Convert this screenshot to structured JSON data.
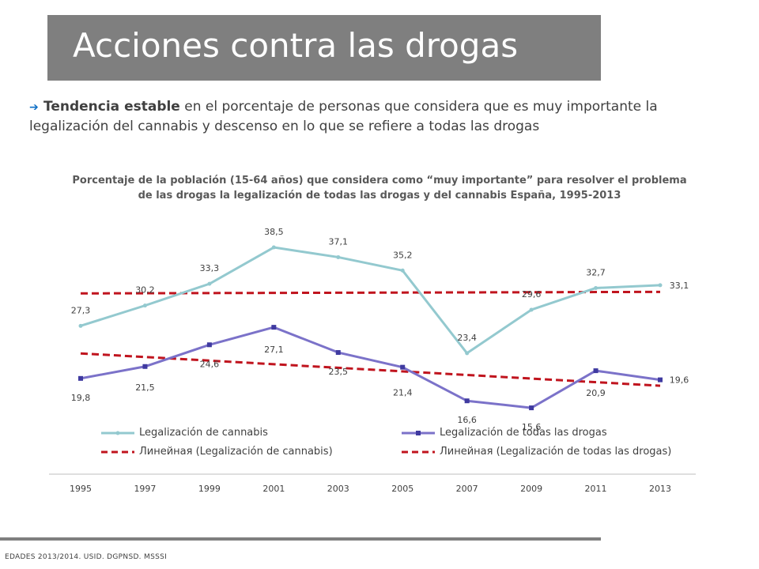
{
  "header": {
    "title": "Acciones contra las drogas"
  },
  "bullet": {
    "bold": "Tendencia estable",
    "rest": " en el porcentaje de personas que considera que es muy importante la legalización del cannabis y descenso en lo que se refiere a todas las drogas"
  },
  "footer": {
    "source": "EDADES 2013/2014. USID. DGPNSD. MSSSI"
  },
  "colors": {
    "title_bar": "#7f7f7f",
    "cannabis": "#93c9cf",
    "todas": "#7b72c9",
    "trend": "#c0141e",
    "arrow": "#0f6fc6"
  },
  "chart_data": {
    "type": "line",
    "title": "Porcentaje de la población (15-64 años) que considera como “muy importante” para resolver el problema de las drogas la legalización de todas las drogas  y del cannabis España, 1995-2013",
    "categories": [
      "1995",
      "1997",
      "1999",
      "2001",
      "2003",
      "2005",
      "2007",
      "2009",
      "2011",
      "2013"
    ],
    "series": [
      {
        "name": "Legalización de cannabis",
        "values": [
          27.3,
          30.2,
          33.3,
          38.5,
          37.1,
          35.2,
          23.4,
          29.6,
          32.7,
          33.1
        ],
        "labels": [
          "27,3",
          "30,2",
          "33,3",
          "38,5",
          "37,1",
          "35,2",
          "23,4",
          "29,6",
          "32,7",
          "33,1"
        ]
      },
      {
        "name": "Legalización de todas las drogas",
        "values": [
          19.8,
          21.5,
          24.6,
          27.1,
          23.5,
          21.4,
          16.6,
          15.6,
          20.9,
          19.6
        ],
        "labels": [
          "19,8",
          "21,5",
          "24,6",
          "27,1",
          "23,5",
          "21,4",
          "16,6",
          "15,6",
          "20,9",
          "19,6"
        ]
      }
    ],
    "trendlines": [
      {
        "name": "Линейная (Legalización de cannabis)",
        "of": "Legalización de cannabis"
      },
      {
        "name": "Линейная (Legalización de todas las drogas)",
        "of": "Legalización de todas las drogas"
      }
    ],
    "ylim": [
      12,
      42
    ],
    "legend": "bottom",
    "grid": false
  }
}
